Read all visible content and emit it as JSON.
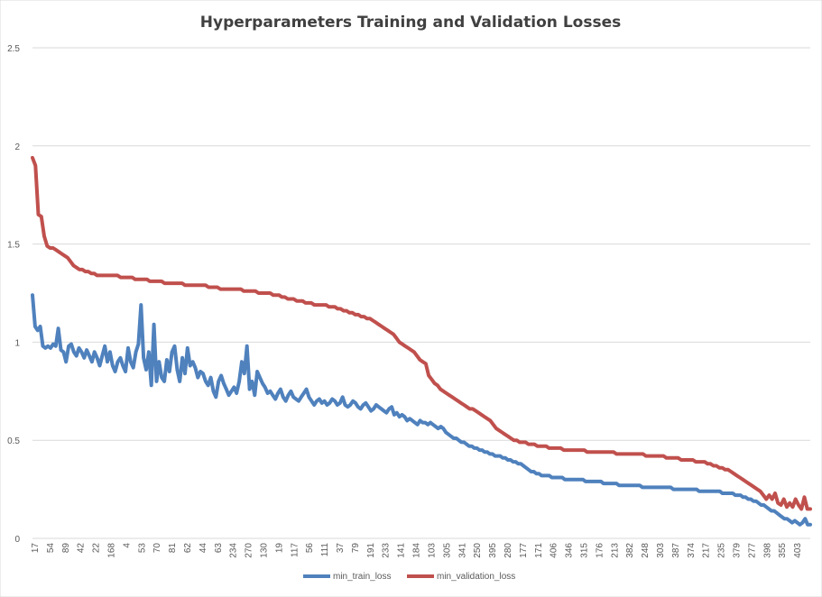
{
  "chart_data": {
    "type": "line",
    "title": "Hyperparameters Training and Validation Losses",
    "xlabel": "",
    "ylabel": "",
    "ylim": [
      0,
      2.5
    ],
    "yticks": [
      0,
      0.5,
      1,
      1.5,
      2,
      2.5
    ],
    "grid": true,
    "legend": "bottom",
    "x_tick_labels": [
      "17",
      "54",
      "89",
      "42",
      "22",
      "168",
      "4",
      "53",
      "70",
      "81",
      "62",
      "44",
      "63",
      "234",
      "270",
      "130",
      "19",
      "117",
      "56",
      "111",
      "37",
      "79",
      "191",
      "233",
      "141",
      "184",
      "103",
      "305",
      "341",
      "250",
      "395",
      "280",
      "177",
      "171",
      "406",
      "346",
      "315",
      "176",
      "213",
      "382",
      "248",
      "303",
      "387",
      "374",
      "217",
      "235",
      "379",
      "277",
      "398",
      "355",
      "403"
    ],
    "series": [
      {
        "name": "min_train_loss",
        "color": "#4f81bd",
        "values": [
          1.24,
          1.08,
          1.06,
          1.08,
          0.98,
          0.97,
          0.98,
          0.97,
          0.99,
          0.98,
          1.07,
          0.96,
          0.95,
          0.9,
          0.98,
          0.99,
          0.95,
          0.93,
          0.97,
          0.95,
          0.92,
          0.96,
          0.93,
          0.9,
          0.95,
          0.92,
          0.88,
          0.93,
          0.98,
          0.9,
          0.95,
          0.88,
          0.85,
          0.9,
          0.92,
          0.88,
          0.85,
          0.97,
          0.9,
          0.87,
          0.95,
          0.99,
          1.19,
          0.92,
          0.86,
          0.95,
          0.78,
          1.09,
          0.8,
          0.9,
          0.82,
          0.8,
          0.91,
          0.85,
          0.95,
          0.98,
          0.86,
          0.8,
          0.92,
          0.84,
          0.97,
          0.88,
          0.9,
          0.87,
          0.82,
          0.85,
          0.84,
          0.8,
          0.78,
          0.82,
          0.75,
          0.72,
          0.8,
          0.83,
          0.79,
          0.76,
          0.73,
          0.75,
          0.77,
          0.74,
          0.8,
          0.9,
          0.84,
          0.98,
          0.76,
          0.8,
          0.73,
          0.85,
          0.82,
          0.79,
          0.77,
          0.74,
          0.75,
          0.73,
          0.71,
          0.74,
          0.76,
          0.72,
          0.7,
          0.73,
          0.75,
          0.72,
          0.71,
          0.7,
          0.72,
          0.74,
          0.76,
          0.72,
          0.7,
          0.68,
          0.7,
          0.71,
          0.69,
          0.7,
          0.68,
          0.69,
          0.71,
          0.7,
          0.68,
          0.69,
          0.72,
          0.68,
          0.67,
          0.68,
          0.7,
          0.69,
          0.67,
          0.66,
          0.68,
          0.69,
          0.67,
          0.65,
          0.66,
          0.68,
          0.67,
          0.66,
          0.65,
          0.64,
          0.66,
          0.67,
          0.63,
          0.64,
          0.62,
          0.63,
          0.62,
          0.6,
          0.61,
          0.6,
          0.59,
          0.58,
          0.6,
          0.59,
          0.59,
          0.58,
          0.59,
          0.58,
          0.57,
          0.56,
          0.57,
          0.56,
          0.54,
          0.53,
          0.52,
          0.51,
          0.51,
          0.5,
          0.49,
          0.49,
          0.48,
          0.47,
          0.47,
          0.46,
          0.46,
          0.45,
          0.45,
          0.44,
          0.44,
          0.43,
          0.43,
          0.42,
          0.42,
          0.42,
          0.41,
          0.41,
          0.4,
          0.4,
          0.39,
          0.39,
          0.38,
          0.38,
          0.37,
          0.36,
          0.35,
          0.34,
          0.34,
          0.33,
          0.33,
          0.32,
          0.32,
          0.32,
          0.32,
          0.31,
          0.31,
          0.31,
          0.31,
          0.31,
          0.3,
          0.3,
          0.3,
          0.3,
          0.3,
          0.3,
          0.3,
          0.3,
          0.29,
          0.29,
          0.29,
          0.29,
          0.29,
          0.29,
          0.29,
          0.28,
          0.28,
          0.28,
          0.28,
          0.28,
          0.28,
          0.27,
          0.27,
          0.27,
          0.27,
          0.27,
          0.27,
          0.27,
          0.27,
          0.27,
          0.26,
          0.26,
          0.26,
          0.26,
          0.26,
          0.26,
          0.26,
          0.26,
          0.26,
          0.26,
          0.26,
          0.26,
          0.25,
          0.25,
          0.25,
          0.25,
          0.25,
          0.25,
          0.25,
          0.25,
          0.25,
          0.25,
          0.24,
          0.24,
          0.24,
          0.24,
          0.24,
          0.24,
          0.24,
          0.24,
          0.24,
          0.23,
          0.23,
          0.23,
          0.23,
          0.23,
          0.22,
          0.22,
          0.22,
          0.21,
          0.21,
          0.2,
          0.2,
          0.19,
          0.19,
          0.18,
          0.17,
          0.17,
          0.16,
          0.15,
          0.14,
          0.14,
          0.13,
          0.12,
          0.11,
          0.1,
          0.1,
          0.09,
          0.08,
          0.09,
          0.08,
          0.07,
          0.08,
          0.1,
          0.07,
          0.07
        ]
      },
      {
        "name": "min_validation_loss",
        "color": "#c0504d",
        "values": [
          1.94,
          1.9,
          1.65,
          1.64,
          1.54,
          1.49,
          1.48,
          1.48,
          1.47,
          1.46,
          1.45,
          1.44,
          1.43,
          1.41,
          1.39,
          1.38,
          1.37,
          1.37,
          1.36,
          1.36,
          1.35,
          1.35,
          1.34,
          1.34,
          1.34,
          1.34,
          1.34,
          1.34,
          1.34,
          1.34,
          1.33,
          1.33,
          1.33,
          1.33,
          1.33,
          1.32,
          1.32,
          1.32,
          1.32,
          1.32,
          1.31,
          1.31,
          1.31,
          1.31,
          1.31,
          1.3,
          1.3,
          1.3,
          1.3,
          1.3,
          1.3,
          1.3,
          1.29,
          1.29,
          1.29,
          1.29,
          1.29,
          1.29,
          1.29,
          1.29,
          1.28,
          1.28,
          1.28,
          1.28,
          1.27,
          1.27,
          1.27,
          1.27,
          1.27,
          1.27,
          1.27,
          1.27,
          1.26,
          1.26,
          1.26,
          1.26,
          1.26,
          1.25,
          1.25,
          1.25,
          1.25,
          1.25,
          1.24,
          1.24,
          1.24,
          1.23,
          1.23,
          1.22,
          1.22,
          1.22,
          1.21,
          1.21,
          1.21,
          1.2,
          1.2,
          1.2,
          1.19,
          1.19,
          1.19,
          1.19,
          1.19,
          1.18,
          1.18,
          1.18,
          1.17,
          1.17,
          1.16,
          1.16,
          1.15,
          1.15,
          1.14,
          1.14,
          1.13,
          1.13,
          1.12,
          1.12,
          1.11,
          1.1,
          1.09,
          1.08,
          1.07,
          1.06,
          1.05,
          1.04,
          1.02,
          1.0,
          0.99,
          0.98,
          0.97,
          0.96,
          0.95,
          0.93,
          0.91,
          0.9,
          0.89,
          0.83,
          0.81,
          0.79,
          0.78,
          0.76,
          0.75,
          0.74,
          0.73,
          0.72,
          0.71,
          0.7,
          0.69,
          0.68,
          0.67,
          0.66,
          0.66,
          0.65,
          0.64,
          0.63,
          0.62,
          0.61,
          0.6,
          0.58,
          0.56,
          0.55,
          0.54,
          0.53,
          0.52,
          0.51,
          0.5,
          0.5,
          0.49,
          0.49,
          0.49,
          0.48,
          0.48,
          0.48,
          0.47,
          0.47,
          0.47,
          0.47,
          0.46,
          0.46,
          0.46,
          0.46,
          0.46,
          0.45,
          0.45,
          0.45,
          0.45,
          0.45,
          0.45,
          0.45,
          0.45,
          0.44,
          0.44,
          0.44,
          0.44,
          0.44,
          0.44,
          0.44,
          0.44,
          0.44,
          0.44,
          0.43,
          0.43,
          0.43,
          0.43,
          0.43,
          0.43,
          0.43,
          0.43,
          0.43,
          0.43,
          0.42,
          0.42,
          0.42,
          0.42,
          0.42,
          0.42,
          0.42,
          0.41,
          0.41,
          0.41,
          0.41,
          0.41,
          0.4,
          0.4,
          0.4,
          0.4,
          0.4,
          0.39,
          0.39,
          0.39,
          0.39,
          0.38,
          0.38,
          0.37,
          0.37,
          0.36,
          0.36,
          0.35,
          0.35,
          0.34,
          0.33,
          0.32,
          0.31,
          0.3,
          0.29,
          0.28,
          0.27,
          0.26,
          0.25,
          0.24,
          0.22,
          0.2,
          0.22,
          0.2,
          0.23,
          0.18,
          0.17,
          0.2,
          0.16,
          0.18,
          0.16,
          0.2,
          0.17,
          0.15,
          0.21,
          0.15,
          0.15
        ]
      }
    ]
  }
}
